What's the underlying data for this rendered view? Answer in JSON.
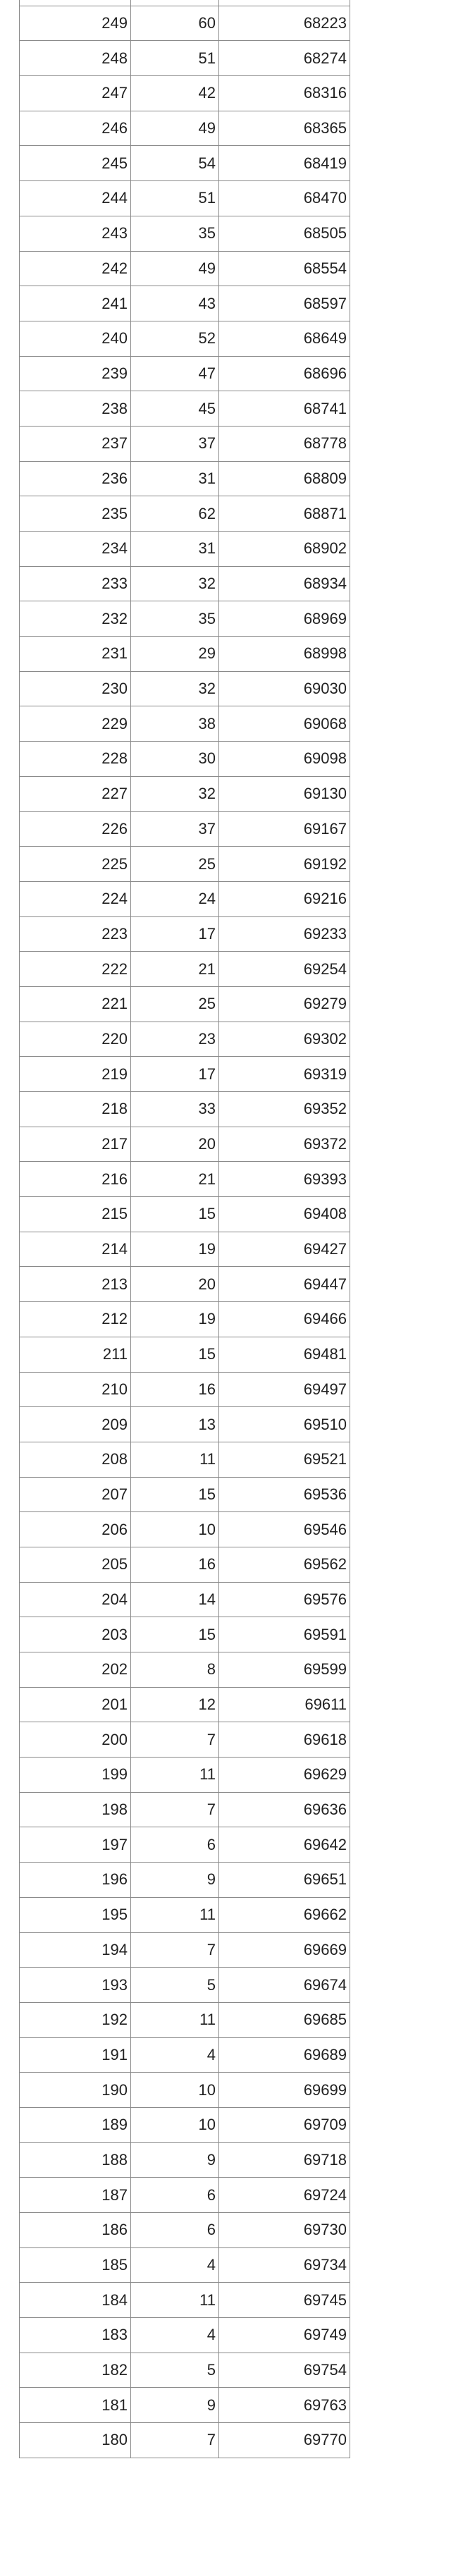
{
  "table": {
    "rows": [
      [
        "249",
        "60",
        "68223"
      ],
      [
        "248",
        "51",
        "68274"
      ],
      [
        "247",
        "42",
        "68316"
      ],
      [
        "246",
        "49",
        "68365"
      ],
      [
        "245",
        "54",
        "68419"
      ],
      [
        "244",
        "51",
        "68470"
      ],
      [
        "243",
        "35",
        "68505"
      ],
      [
        "242",
        "49",
        "68554"
      ],
      [
        "241",
        "43",
        "68597"
      ],
      [
        "240",
        "52",
        "68649"
      ],
      [
        "239",
        "47",
        "68696"
      ],
      [
        "238",
        "45",
        "68741"
      ],
      [
        "237",
        "37",
        "68778"
      ],
      [
        "236",
        "31",
        "68809"
      ],
      [
        "235",
        "62",
        "68871"
      ],
      [
        "234",
        "31",
        "68902"
      ],
      [
        "233",
        "32",
        "68934"
      ],
      [
        "232",
        "35",
        "68969"
      ],
      [
        "231",
        "29",
        "68998"
      ],
      [
        "230",
        "32",
        "69030"
      ],
      [
        "229",
        "38",
        "69068"
      ],
      [
        "228",
        "30",
        "69098"
      ],
      [
        "227",
        "32",
        "69130"
      ],
      [
        "226",
        "37",
        "69167"
      ],
      [
        "225",
        "25",
        "69192"
      ],
      [
        "224",
        "24",
        "69216"
      ],
      [
        "223",
        "17",
        "69233"
      ],
      [
        "222",
        "21",
        "69254"
      ],
      [
        "221",
        "25",
        "69279"
      ],
      [
        "220",
        "23",
        "69302"
      ],
      [
        "219",
        "17",
        "69319"
      ],
      [
        "218",
        "33",
        "69352"
      ],
      [
        "217",
        "20",
        "69372"
      ],
      [
        "216",
        "21",
        "69393"
      ],
      [
        "215",
        "15",
        "69408"
      ],
      [
        "214",
        "19",
        "69427"
      ],
      [
        "213",
        "20",
        "69447"
      ],
      [
        "212",
        "19",
        "69466"
      ],
      [
        "211",
        "15",
        "69481"
      ],
      [
        "210",
        "16",
        "69497"
      ],
      [
        "209",
        "13",
        "69510"
      ],
      [
        "208",
        "11",
        "69521"
      ],
      [
        "207",
        "15",
        "69536"
      ],
      [
        "206",
        "10",
        "69546"
      ],
      [
        "205",
        "16",
        "69562"
      ],
      [
        "204",
        "14",
        "69576"
      ],
      [
        "203",
        "15",
        "69591"
      ],
      [
        "202",
        "8",
        "69599"
      ],
      [
        "201",
        "12",
        "69611"
      ],
      [
        "200",
        "7",
        "69618"
      ],
      [
        "199",
        "11",
        "69629"
      ],
      [
        "198",
        "7",
        "69636"
      ],
      [
        "197",
        "6",
        "69642"
      ],
      [
        "196",
        "9",
        "69651"
      ],
      [
        "195",
        "11",
        "69662"
      ],
      [
        "194",
        "7",
        "69669"
      ],
      [
        "193",
        "5",
        "69674"
      ],
      [
        "192",
        "11",
        "69685"
      ],
      [
        "191",
        "4",
        "69689"
      ],
      [
        "190",
        "10",
        "69699"
      ],
      [
        "189",
        "10",
        "69709"
      ],
      [
        "188",
        "9",
        "69718"
      ],
      [
        "187",
        "6",
        "69724"
      ],
      [
        "186",
        "6",
        "69730"
      ],
      [
        "185",
        "4",
        "69734"
      ],
      [
        "184",
        "11",
        "69745"
      ],
      [
        "183",
        "4",
        "69749"
      ],
      [
        "182",
        "5",
        "69754"
      ],
      [
        "181",
        "9",
        "69763"
      ],
      [
        "180",
        "7",
        "69770"
      ]
    ]
  }
}
